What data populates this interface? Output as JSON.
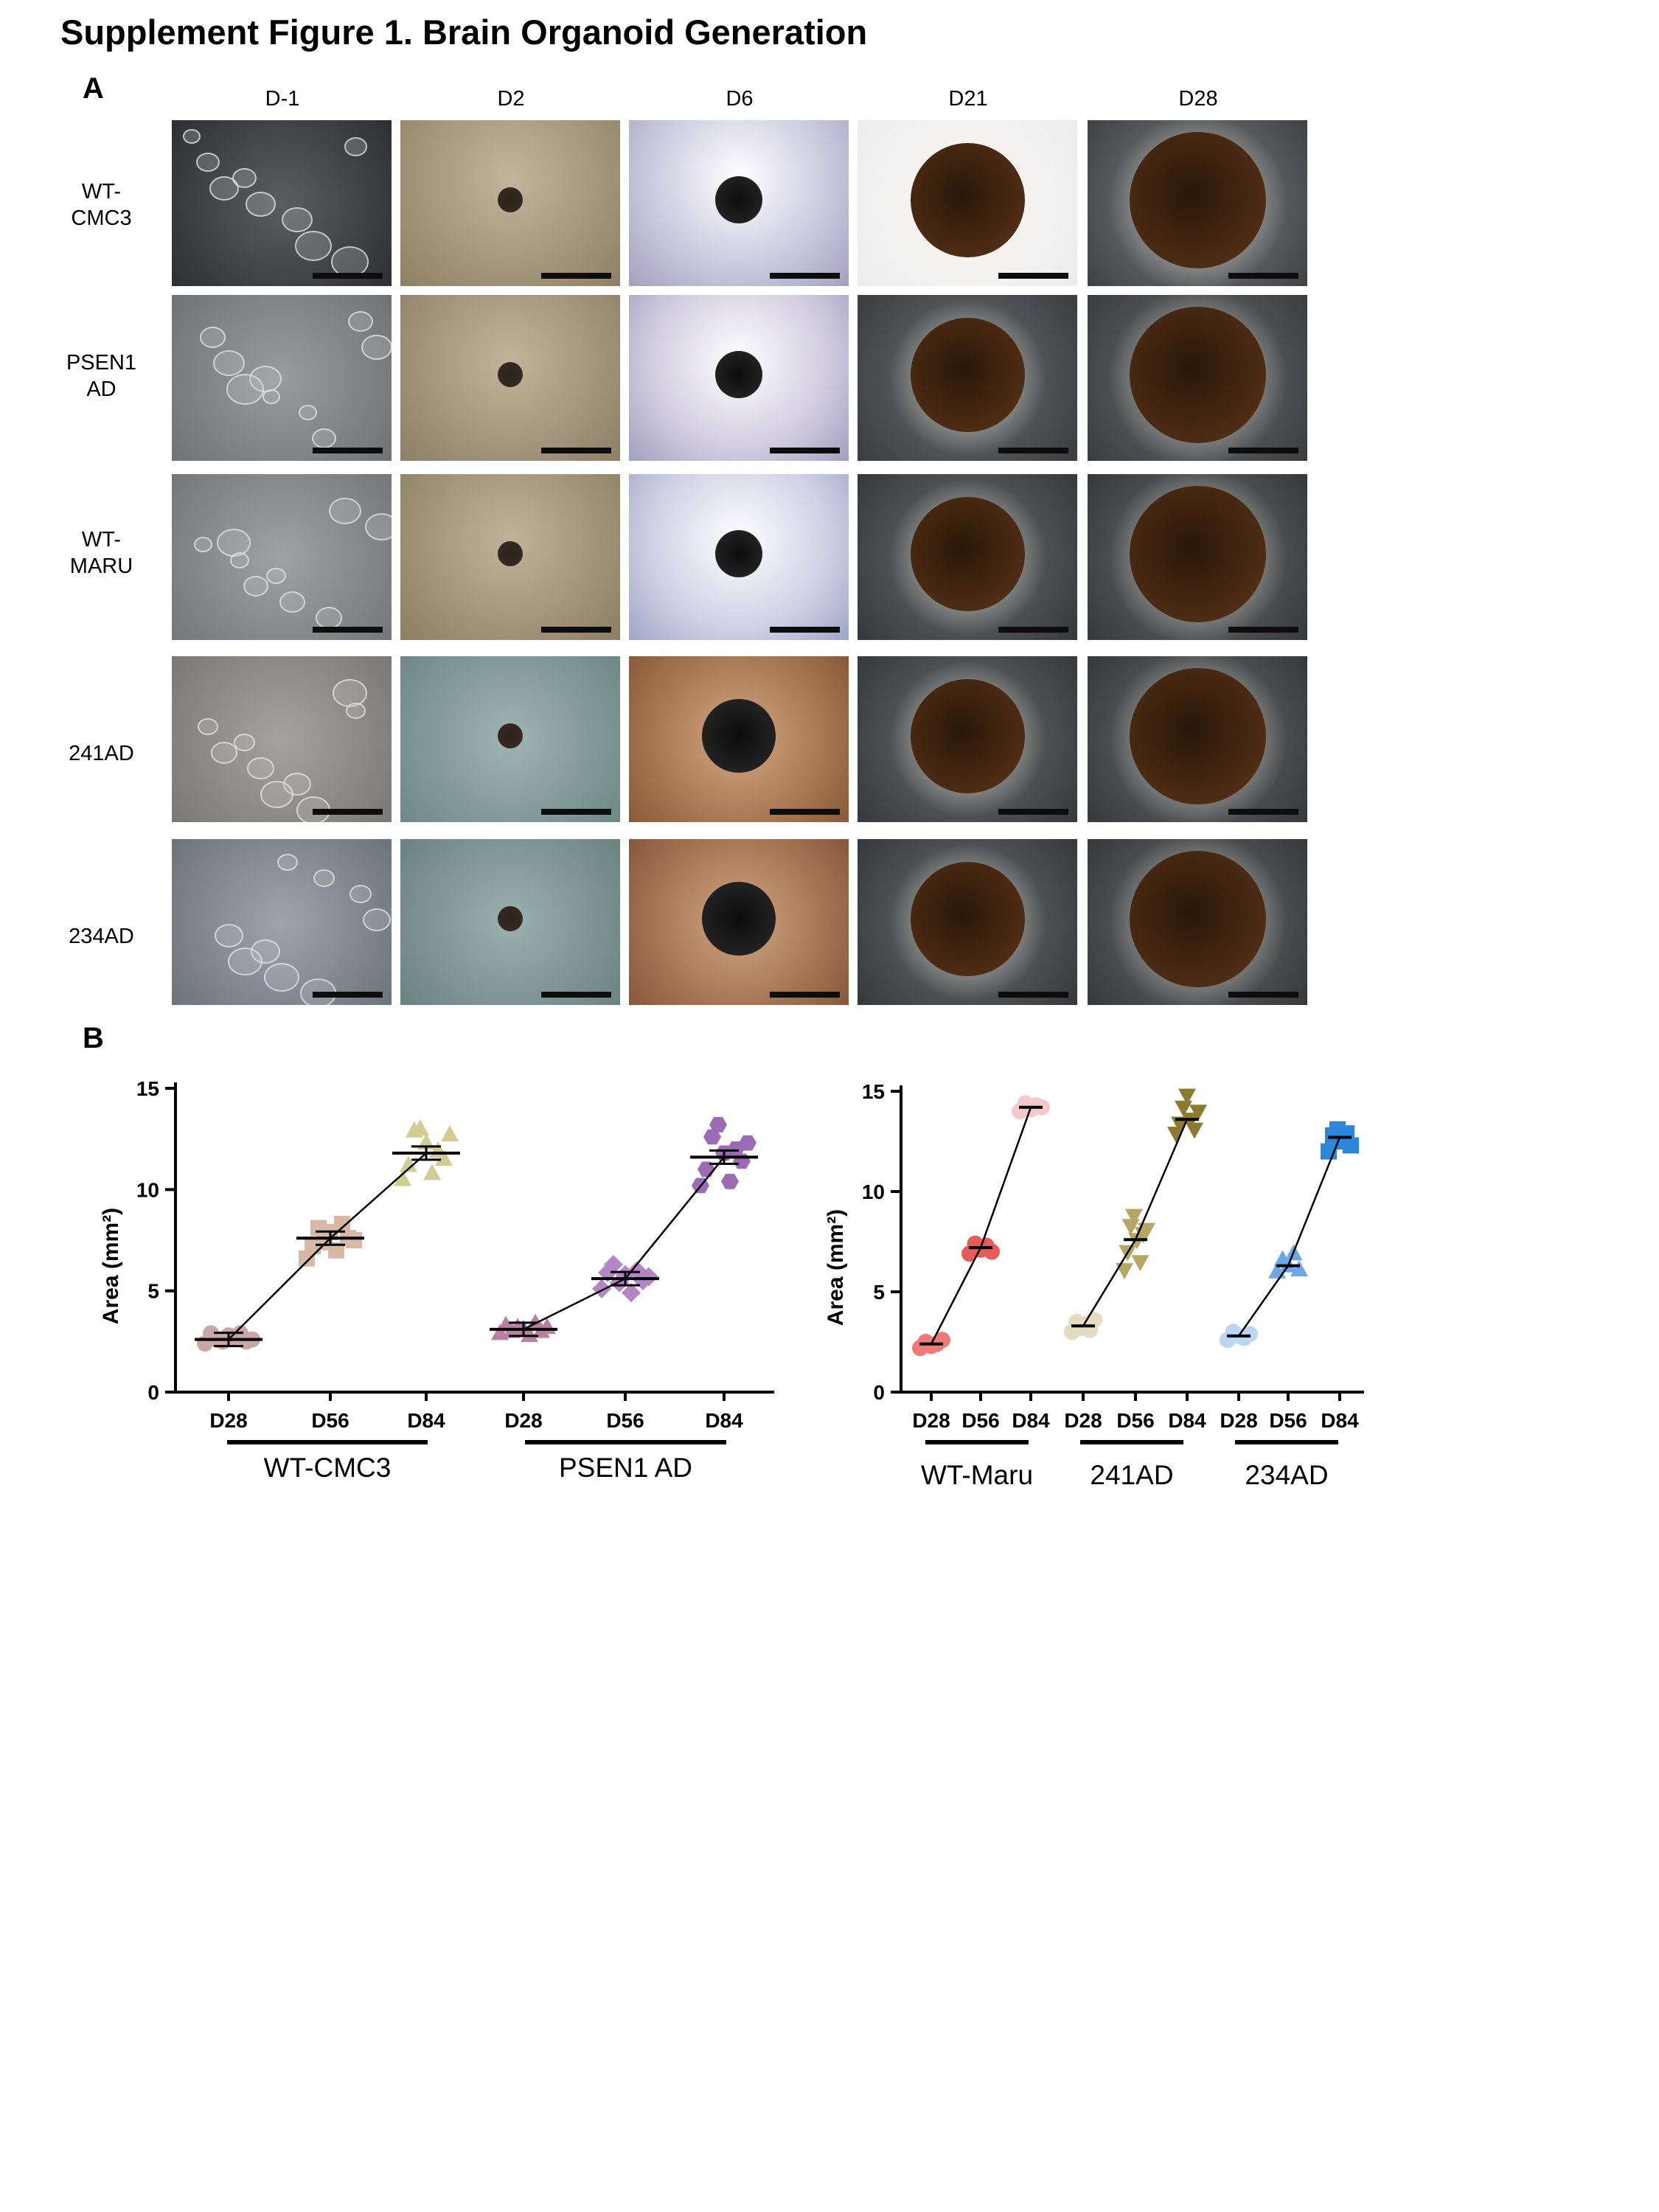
{
  "figure_title": "Supplement Figure 1. Brain Organoid Generation",
  "panel_a": {
    "letter": "A",
    "columns": [
      "D-1",
      "D2",
      "D6",
      "D21",
      "D28"
    ],
    "rows": [
      {
        "label_line1": "WT-",
        "label_line2": "CMC3"
      },
      {
        "label_line1": "PSEN1",
        "label_line2": "AD"
      },
      {
        "label_line1": "WT-",
        "label_line2": "MARU"
      },
      {
        "label_line1": "241AD",
        "label_line2": ""
      },
      {
        "label_line1": "234AD",
        "label_line2": ""
      }
    ]
  },
  "panel_b": {
    "letter": "B",
    "timepoints": [
      "D28",
      "D56",
      "D84"
    ]
  },
  "chart_data": [
    {
      "type": "scatter",
      "ylabel": "Area (mm²)",
      "ylim": [
        0,
        15
      ],
      "yticks": [
        "0",
        "5",
        "10",
        "15"
      ],
      "groups": [
        {
          "name": "WT-CMC3",
          "categories": [
            "D28",
            "D56",
            "D84"
          ],
          "means": [
            2.6,
            7.6,
            11.8
          ],
          "points": [
            [
              2.4,
              2.9,
              2.6,
              2.5,
              2.8,
              2.7,
              2.9,
              2.5,
              2.6
            ],
            [
              6.6,
              7.2,
              8.1,
              7.4,
              7.9,
              7.0,
              8.3,
              7.6,
              7.5
            ],
            [
              10.5,
              11.2,
              12.9,
              13.0,
              12.3,
              10.8,
              11.9,
              11.5,
              12.7
            ]
          ],
          "color": "#c8a79a",
          "marker": "circle/square/triangle"
        },
        {
          "name": "PSEN1 AD",
          "categories": [
            "D28",
            "D56",
            "D84"
          ],
          "means": [
            3.1,
            5.6,
            11.6
          ],
          "points": [
            [
              2.9,
              3.3,
              3.0,
              3.2,
              3.1,
              2.8,
              3.4,
              3.0,
              3.2
            ],
            [
              5.1,
              5.9,
              6.3,
              5.4,
              5.8,
              4.9,
              6.0,
              5.5,
              5.7
            ],
            [
              10.2,
              11.0,
              12.6,
              13.2,
              11.8,
              10.4,
              12.0,
              11.4,
              12.3
            ]
          ],
          "color": "#a474b5",
          "marker": "triangle/diamond/hexagon"
        }
      ]
    },
    {
      "type": "scatter",
      "ylabel": "Area (mm²)",
      "ylim": [
        0,
        15
      ],
      "yticks": [
        "0",
        "5",
        "10",
        "15"
      ],
      "groups": [
        {
          "name": "WT-Maru",
          "categories": [
            "D28",
            "D56",
            "D84"
          ],
          "means": [
            2.4,
            7.2,
            14.2
          ],
          "points": [
            [
              2.2,
              2.5,
              2.3,
              2.4,
              2.6
            ],
            [
              6.9,
              7.4,
              7.1,
              7.3,
              7.0
            ],
            [
              14.0,
              14.4,
              14.1,
              14.3,
              14.2
            ]
          ],
          "color": "#ef8a8a",
          "marker": "circle"
        },
        {
          "name": "241AD",
          "categories": [
            "D28",
            "D56",
            "D84"
          ],
          "means": [
            3.3,
            7.6,
            13.6
          ],
          "points": [
            [
              3.0,
              3.5,
              3.2,
              3.4,
              3.1,
              3.6
            ],
            [
              6.1,
              7.0,
              8.3,
              8.8,
              7.6,
              6.5,
              7.9,
              8.1
            ],
            [
              12.9,
              13.4,
              14.2,
              14.8,
              13.6,
              13.1,
              14.0
            ]
          ],
          "color": "#8f7d3c",
          "marker": "triangle-down"
        },
        {
          "name": "234AD",
          "categories": [
            "D28",
            "D56",
            "D84"
          ],
          "means": [
            2.8,
            6.3,
            12.7
          ],
          "points": [
            [
              2.6,
              3.0,
              2.8,
              2.7,
              2.9
            ],
            [
              6.0,
              6.6,
              6.3,
              6.9,
              6.1
            ],
            [
              12.0,
              12.8,
              13.1,
              12.5,
              12.9,
              12.3
            ]
          ],
          "color": "#3c8bdc",
          "marker": "square"
        }
      ]
    }
  ],
  "colors": {
    "wt_cmc3_d28": "#c8a7a6",
    "wt_cmc3_d56": "#d8b7a4",
    "wt_cmc3_d84": "#d1cc92",
    "psen1_d28": "#b981a1",
    "psen1_d56": "#b586c4",
    "psen1_d84": "#9b6bb3",
    "wtmaru_d28": "#f07a7a",
    "wtmaru_d56": "#e65b5b",
    "wtmaru_d84": "#f5c9c9",
    "ad241_d28": "#e3dcc3",
    "ad241_d56": "#b5a664",
    "ad241_d84": "#8c7a2f",
    "ad234_d28": "#bcd6f2",
    "ad234_d56": "#6ea8e6",
    "ad234_d84": "#2c86d9"
  }
}
